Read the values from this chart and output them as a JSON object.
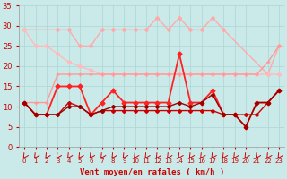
{
  "xlabel": "Vent moyen/en rafales ( km/h )",
  "xlim": [
    -0.5,
    23.5
  ],
  "ylim": [
    0,
    35
  ],
  "yticks": [
    0,
    5,
    10,
    15,
    20,
    25,
    30,
    35
  ],
  "xticks": [
    0,
    1,
    2,
    3,
    4,
    5,
    6,
    7,
    8,
    9,
    10,
    11,
    12,
    13,
    14,
    15,
    16,
    17,
    18,
    19,
    20,
    21,
    22,
    23
  ],
  "bg_color": "#caeaea",
  "grid_color": "#b0d8d8",
  "series": [
    {
      "x": [
        0,
        3,
        4,
        5,
        6,
        7,
        8,
        9,
        10,
        11,
        12,
        13,
        14,
        15,
        16,
        17,
        18,
        22,
        23
      ],
      "y": [
        29,
        29,
        29,
        25,
        25,
        29,
        29,
        29,
        29,
        29,
        32,
        29,
        32,
        29,
        29,
        32,
        29,
        18,
        25
      ],
      "color": "#ffaaaa",
      "linewidth": 1.0,
      "marker": "D",
      "markersize": 2.0,
      "linestyle": "-"
    },
    {
      "x": [
        0,
        1,
        2,
        3,
        4,
        5,
        6,
        7,
        8,
        9,
        10,
        11,
        12,
        13,
        14,
        15,
        16,
        17,
        18,
        19,
        20,
        21,
        22,
        23
      ],
      "y": [
        29,
        25,
        25,
        23,
        21,
        20,
        19,
        18,
        18,
        18,
        18,
        18,
        18,
        18,
        18,
        18,
        18,
        18,
        18,
        18,
        18,
        18,
        18,
        18
      ],
      "color": "#ffbbbb",
      "linewidth": 1.0,
      "marker": "D",
      "markersize": 2.0,
      "linestyle": "-"
    },
    {
      "x": [
        0,
        1,
        2,
        3,
        4,
        5,
        6,
        7,
        8,
        9,
        10,
        11,
        12,
        13,
        14,
        15,
        16,
        17,
        18,
        19,
        20,
        21,
        22,
        23
      ],
      "y": [
        11,
        11,
        11,
        18,
        18,
        18,
        18,
        18,
        18,
        18,
        18,
        18,
        18,
        18,
        18,
        18,
        18,
        18,
        18,
        18,
        18,
        18,
        21,
        25
      ],
      "color": "#ff9999",
      "linewidth": 1.0,
      "marker": "+",
      "markersize": 3.0,
      "linestyle": "-"
    },
    {
      "x": [
        0,
        1,
        2,
        3,
        4,
        5,
        6,
        7,
        8,
        9,
        10,
        11,
        12,
        13,
        14,
        15,
        16,
        17,
        18,
        19,
        20,
        21,
        22,
        23
      ],
      "y": [
        11,
        8,
        8,
        15,
        15,
        15,
        8,
        11,
        14,
        11,
        11,
        11,
        11,
        11,
        23,
        11,
        11,
        14,
        8,
        8,
        5,
        11,
        11,
        14
      ],
      "color": "#ff2222",
      "linewidth": 1.3,
      "marker": "D",
      "markersize": 2.5,
      "linestyle": "-"
    },
    {
      "x": [
        0,
        1,
        2,
        3,
        4,
        5,
        6,
        7,
        8,
        9,
        10,
        11,
        12,
        13,
        14,
        15,
        16,
        17,
        18,
        19,
        20,
        21,
        22,
        23
      ],
      "y": [
        11,
        8,
        8,
        8,
        11,
        10,
        8,
        9,
        9,
        9,
        9,
        9,
        9,
        9,
        9,
        9,
        9,
        9,
        8,
        8,
        8,
        8,
        11,
        14
      ],
      "color": "#cc0000",
      "linewidth": 1.0,
      "marker": "D",
      "markersize": 2.0,
      "linestyle": "-"
    },
    {
      "x": [
        0,
        1,
        2,
        3,
        4,
        5,
        6,
        7,
        8,
        9,
        10,
        11,
        12,
        13,
        14,
        15,
        16,
        17,
        18,
        19,
        20,
        21,
        22,
        23
      ],
      "y": [
        11,
        8,
        8,
        8,
        10,
        10,
        8,
        9,
        10,
        10,
        10,
        10,
        10,
        10,
        11,
        10,
        11,
        13,
        8,
        8,
        5,
        11,
        11,
        14
      ],
      "color": "#990000",
      "linewidth": 1.0,
      "marker": "D",
      "markersize": 2.0,
      "linestyle": "-"
    }
  ],
  "arrow_color": "#cc0000",
  "tick_color": "#cc0000",
  "label_color": "#cc0000"
}
